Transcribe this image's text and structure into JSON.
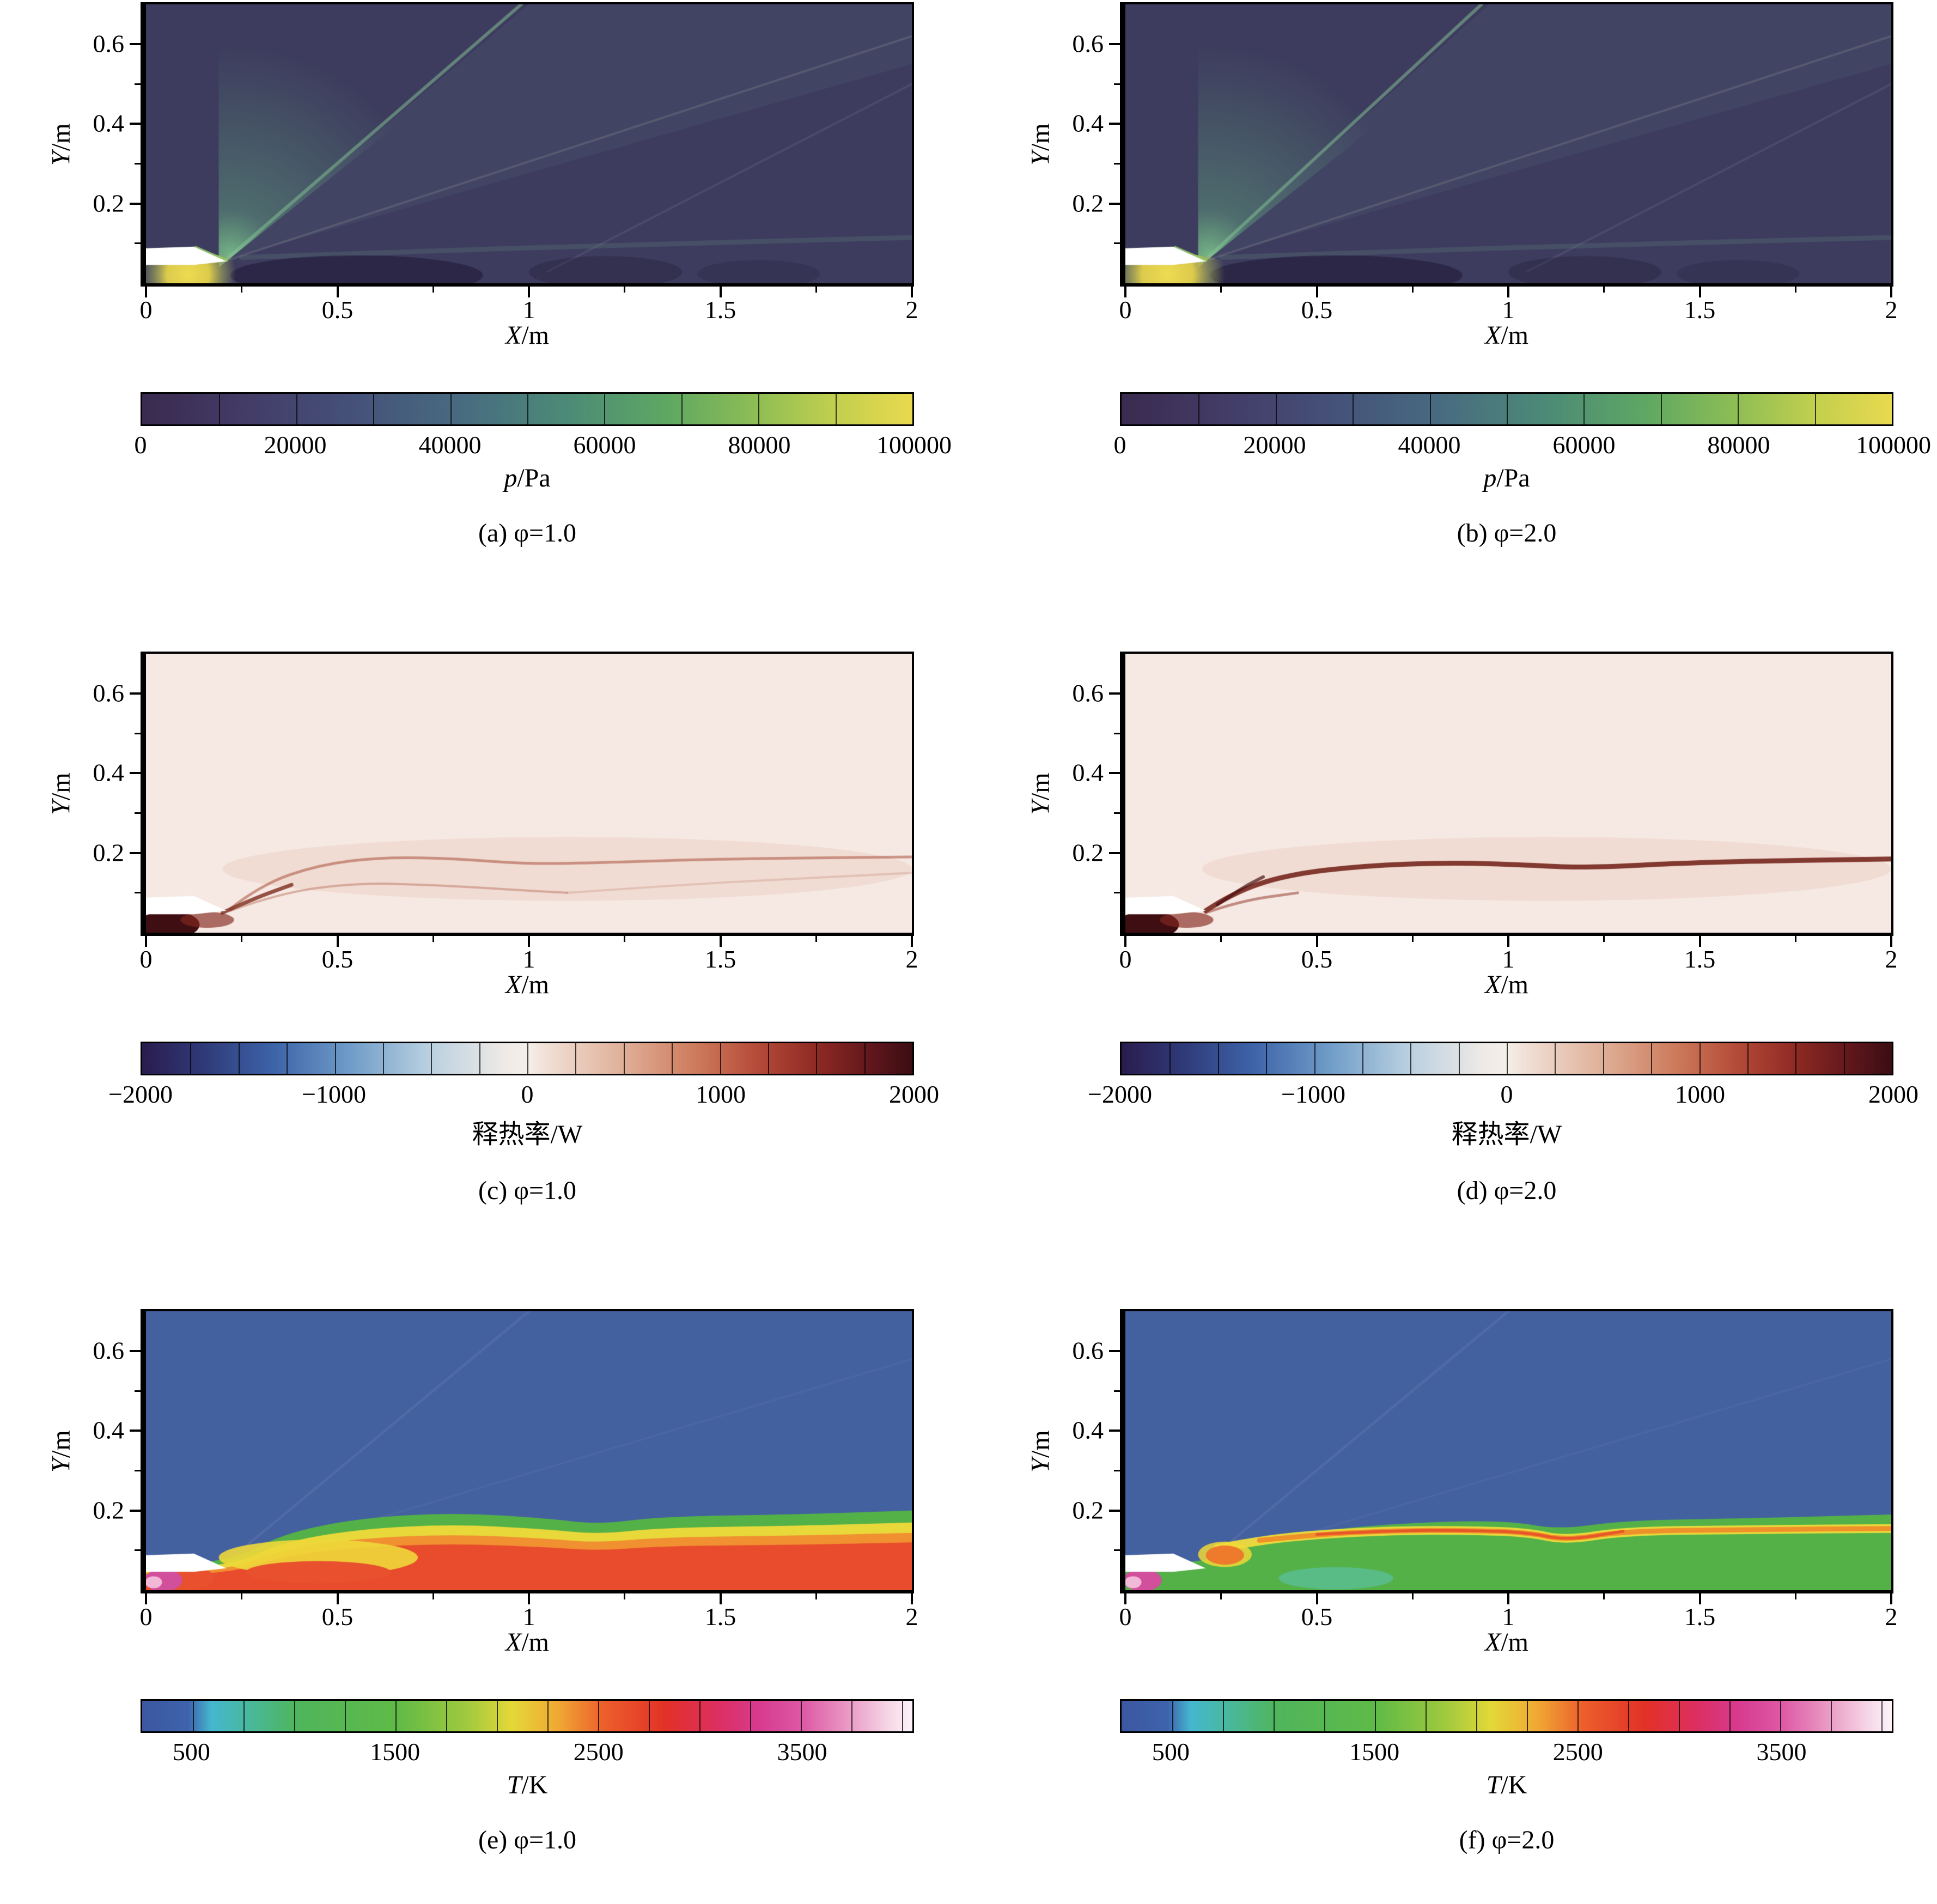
{
  "page": {
    "background": "#ffffff"
  },
  "colormaps": {
    "pressure": [
      [
        0,
        "#3a2a4f"
      ],
      [
        0.14,
        "#433d68"
      ],
      [
        0.28,
        "#45527a"
      ],
      [
        0.42,
        "#486c80"
      ],
      [
        0.55,
        "#4c8a77"
      ],
      [
        0.68,
        "#5ea763"
      ],
      [
        0.8,
        "#8fbe54"
      ],
      [
        0.9,
        "#c2cf4e"
      ],
      [
        1,
        "#e9d94f"
      ]
    ],
    "heat_release": [
      [
        0,
        "#2a1c4e"
      ],
      [
        0.08,
        "#2f3a78"
      ],
      [
        0.17,
        "#3d63a8"
      ],
      [
        0.27,
        "#6f9cc8"
      ],
      [
        0.37,
        "#b7cfe0"
      ],
      [
        0.47,
        "#efeae6"
      ],
      [
        0.5,
        "#f4efe9"
      ],
      [
        0.53,
        "#f0ddd2"
      ],
      [
        0.62,
        "#e0b29b"
      ],
      [
        0.72,
        "#cd7a5b"
      ],
      [
        0.8,
        "#b44a38"
      ],
      [
        0.88,
        "#8c2823"
      ],
      [
        0.95,
        "#5d161b"
      ],
      [
        1,
        "#3a0d13"
      ]
    ],
    "temperature": [
      [
        0,
        "#3b57a0"
      ],
      [
        0.06,
        "#3e63ad"
      ],
      [
        0.09,
        "#44b7cf"
      ],
      [
        0.14,
        "#49b89b"
      ],
      [
        0.2,
        "#4fb55c"
      ],
      [
        0.33,
        "#5fba47"
      ],
      [
        0.42,
        "#9fc93e"
      ],
      [
        0.48,
        "#e4d838"
      ],
      [
        0.54,
        "#f0a834"
      ],
      [
        0.6,
        "#ec5e2c"
      ],
      [
        0.68,
        "#e23127"
      ],
      [
        0.75,
        "#dc2f63"
      ],
      [
        0.8,
        "#d73a8e"
      ],
      [
        0.86,
        "#de5ba6"
      ],
      [
        0.92,
        "#eb9dc7"
      ],
      [
        0.97,
        "#f6d7e7"
      ],
      [
        1,
        "#fdf3f8"
      ]
    ]
  },
  "chart_data": [
    {
      "type": "heatmap",
      "title": "(a) φ=1.0",
      "field": "pressure",
      "variant": "1.0",
      "xlabel_var": "X",
      "xlabel_unit": "/m",
      "ylabel_var": "Y",
      "ylabel_unit": "/m",
      "xlim": [
        0,
        2
      ],
      "ylim": [
        0,
        0.7
      ],
      "x_ticks": [
        0,
        0.5,
        1,
        1.5,
        2
      ],
      "x_tick_labels": [
        "0",
        "0.5",
        "1",
        "1.5",
        "2"
      ],
      "x_minor_step": 0.25,
      "y_ticks": [
        0.2,
        0.4,
        0.6
      ],
      "y_tick_labels": [
        "0.2",
        "0.4",
        "0.6"
      ],
      "y_minor_step": 0.1,
      "cbar_var": "p",
      "cbar_unit": "/Pa",
      "colorbar": {
        "min": 0,
        "max": 100000,
        "ticks": [
          0,
          20000,
          40000,
          60000,
          80000,
          100000
        ],
        "tick_labels": [
          "0",
          "20000",
          "40000",
          "60000",
          "80000",
          "100000"
        ],
        "minor_step": 10000,
        "colormap": "pressure"
      }
    },
    {
      "type": "heatmap",
      "title": "(b) φ=2.0",
      "field": "pressure",
      "variant": "2.0",
      "xlabel_var": "X",
      "xlabel_unit": "/m",
      "ylabel_var": "Y",
      "ylabel_unit": "/m",
      "xlim": [
        0,
        2
      ],
      "ylim": [
        0,
        0.7
      ],
      "x_ticks": [
        0,
        0.5,
        1,
        1.5,
        2
      ],
      "x_tick_labels": [
        "0",
        "0.5",
        "1",
        "1.5",
        "2"
      ],
      "x_minor_step": 0.25,
      "y_ticks": [
        0.2,
        0.4,
        0.6
      ],
      "y_tick_labels": [
        "0.2",
        "0.4",
        "0.6"
      ],
      "y_minor_step": 0.1,
      "cbar_var": "p",
      "cbar_unit": "/Pa",
      "colorbar": {
        "min": 0,
        "max": 100000,
        "ticks": [
          0,
          20000,
          40000,
          60000,
          80000,
          100000
        ],
        "tick_labels": [
          "0",
          "20000",
          "40000",
          "60000",
          "80000",
          "100000"
        ],
        "minor_step": 10000,
        "colormap": "pressure"
      }
    },
    {
      "type": "heatmap",
      "title": "(c) φ=1.0",
      "field": "heat_release",
      "variant": "1.0",
      "xlabel_var": "X",
      "xlabel_unit": "/m",
      "ylabel_var": "Y",
      "ylabel_unit": "/m",
      "xlim": [
        0,
        2
      ],
      "ylim": [
        0,
        0.7
      ],
      "x_ticks": [
        0,
        0.5,
        1,
        1.5,
        2
      ],
      "x_tick_labels": [
        "0",
        "0.5",
        "1",
        "1.5",
        "2"
      ],
      "x_minor_step": 0.25,
      "y_ticks": [
        0.2,
        0.4,
        0.6
      ],
      "y_tick_labels": [
        "0.2",
        "0.4",
        "0.6"
      ],
      "y_minor_step": 0.1,
      "cbar_var": "",
      "cbar_unit": "释热率/W",
      "colorbar": {
        "min": -2000,
        "max": 2000,
        "ticks": [
          -2000,
          -1000,
          0,
          1000,
          2000
        ],
        "tick_labels": [
          "−2000",
          "−1000",
          "0",
          "1000",
          "2000"
        ],
        "minor_step": 250,
        "colormap": "heat_release"
      }
    },
    {
      "type": "heatmap",
      "title": "(d) φ=2.0",
      "field": "heat_release",
      "variant": "2.0",
      "xlabel_var": "X",
      "xlabel_unit": "/m",
      "ylabel_var": "Y",
      "ylabel_unit": "/m",
      "xlim": [
        0,
        2
      ],
      "ylim": [
        0,
        0.7
      ],
      "x_ticks": [
        0,
        0.5,
        1,
        1.5,
        2
      ],
      "x_tick_labels": [
        "0",
        "0.5",
        "1",
        "1.5",
        "2"
      ],
      "x_minor_step": 0.25,
      "y_ticks": [
        0.2,
        0.4,
        0.6
      ],
      "y_tick_labels": [
        "0.2",
        "0.4",
        "0.6"
      ],
      "y_minor_step": 0.1,
      "cbar_var": "",
      "cbar_unit": "释热率/W",
      "colorbar": {
        "min": -2000,
        "max": 2000,
        "ticks": [
          -2000,
          -1000,
          0,
          1000,
          2000
        ],
        "tick_labels": [
          "−2000",
          "−1000",
          "0",
          "1000",
          "2000"
        ],
        "minor_step": 250,
        "colormap": "heat_release"
      }
    },
    {
      "type": "heatmap",
      "title": "(e) φ=1.0",
      "field": "temperature",
      "variant": "1.0",
      "xlabel_var": "X",
      "xlabel_unit": "/m",
      "ylabel_var": "Y",
      "ylabel_unit": "/m",
      "xlim": [
        0,
        2
      ],
      "ylim": [
        0,
        0.7
      ],
      "x_ticks": [
        0,
        0.5,
        1,
        1.5,
        2
      ],
      "x_tick_labels": [
        "0",
        "0.5",
        "1",
        "1.5",
        "2"
      ],
      "x_minor_step": 0.25,
      "y_ticks": [
        0.2,
        0.4,
        0.6
      ],
      "y_tick_labels": [
        "0.2",
        "0.4",
        "0.6"
      ],
      "y_minor_step": 0.1,
      "cbar_var": "T",
      "cbar_unit": "/K",
      "colorbar": {
        "min": 250,
        "max": 4050,
        "ticks": [
          500,
          1500,
          2500,
          3500
        ],
        "tick_labels": [
          "500",
          "1500",
          "2500",
          "3500"
        ],
        "minor_step": 250,
        "colormap": "temperature"
      }
    },
    {
      "type": "heatmap",
      "title": "(f) φ=2.0",
      "field": "temperature",
      "variant": "2.0",
      "xlabel_var": "X",
      "xlabel_unit": "/m",
      "ylabel_var": "Y",
      "ylabel_unit": "/m",
      "xlim": [
        0,
        2
      ],
      "ylim": [
        0,
        0.7
      ],
      "x_ticks": [
        0,
        0.5,
        1,
        1.5,
        2
      ],
      "x_tick_labels": [
        "0",
        "0.5",
        "1",
        "1.5",
        "2"
      ],
      "x_minor_step": 0.25,
      "y_ticks": [
        0.2,
        0.4,
        0.6
      ],
      "y_tick_labels": [
        "0.2",
        "0.4",
        "0.6"
      ],
      "y_minor_step": 0.1,
      "cbar_var": "T",
      "cbar_unit": "/K",
      "colorbar": {
        "min": 250,
        "max": 4050,
        "ticks": [
          500,
          1500,
          2500,
          3500
        ],
        "tick_labels": [
          "500",
          "1500",
          "2500",
          "3500"
        ],
        "minor_step": 250,
        "colormap": "temperature"
      }
    }
  ]
}
